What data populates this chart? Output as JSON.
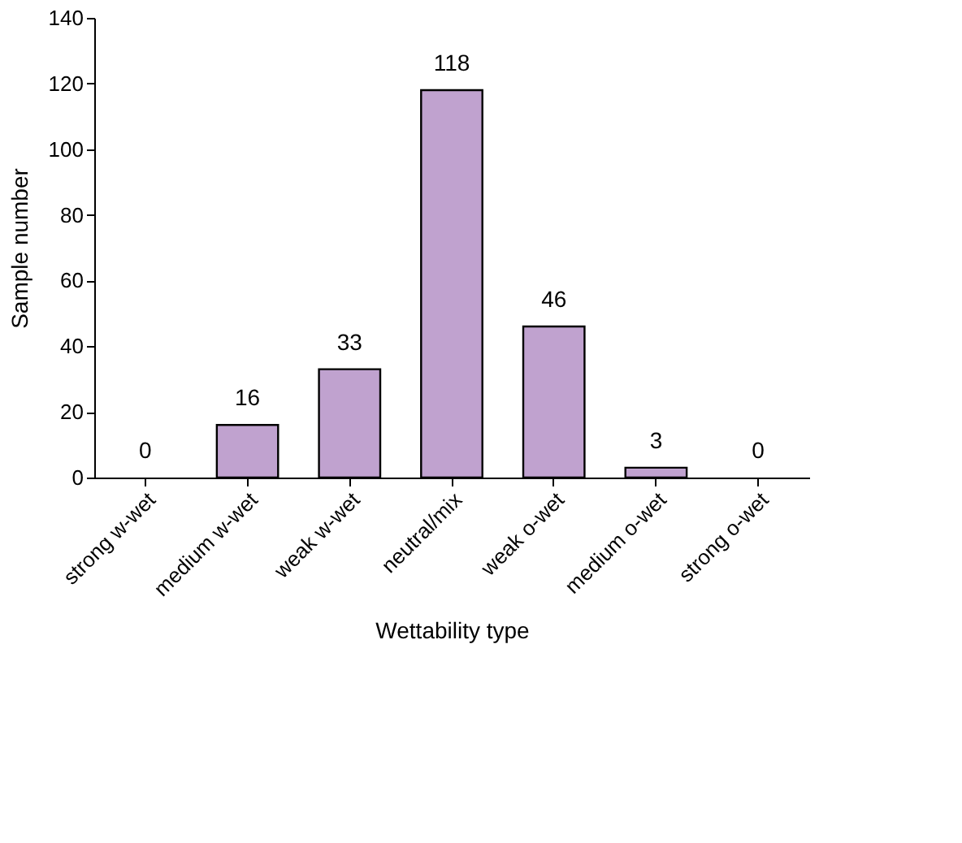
{
  "chart_data": {
    "type": "bar",
    "xlabel": "Wettability type",
    "ylabel": "Sample number",
    "categories": [
      "strong w-wet",
      "medium w-wet",
      "weak w-wet",
      "neutral/mix",
      "weak o-wet",
      "medium o-wet",
      "strong o-wet"
    ],
    "values": [
      0,
      16,
      33,
      118,
      46,
      3,
      0
    ],
    "color": "#c0a2cf",
    "ylim": [
      0,
      140
    ],
    "yticks": [
      0,
      20,
      40,
      60,
      80,
      100,
      120,
      140
    ],
    "grid": false,
    "data_labels": true
  }
}
